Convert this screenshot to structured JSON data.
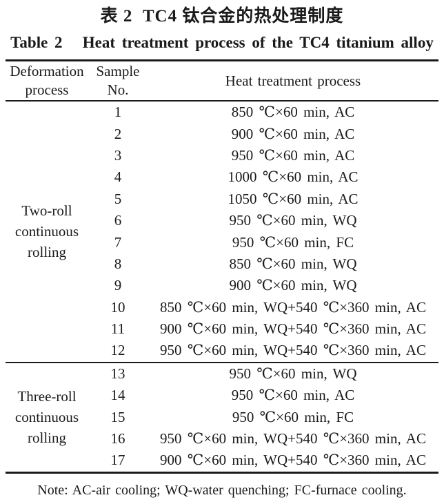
{
  "title": {
    "zh": "表 2  TC4 钛合金的热处理制度",
    "en": "Table 2   Heat treatment process of the TC4 titanium alloy"
  },
  "table": {
    "headers": {
      "deformation_process": "Deformation process",
      "sample_no": "Sample No.",
      "heat_treatment": "Heat treatment process"
    },
    "sections": [
      {
        "deformation_process": "Two-roll continuous rolling",
        "rows": [
          {
            "sample_no": "1",
            "heat_treatment": "850 ℃×60 min, AC"
          },
          {
            "sample_no": "2",
            "heat_treatment": "900 ℃×60 min, AC"
          },
          {
            "sample_no": "3",
            "heat_treatment": "950 ℃×60 min, AC"
          },
          {
            "sample_no": "4",
            "heat_treatment": "1000 ℃×60 min, AC"
          },
          {
            "sample_no": "5",
            "heat_treatment": "1050 ℃×60 min, AC"
          },
          {
            "sample_no": "6",
            "heat_treatment": "950 ℃×60 min, WQ"
          },
          {
            "sample_no": "7",
            "heat_treatment": "950 ℃×60 min, FC"
          },
          {
            "sample_no": "8",
            "heat_treatment": "850 ℃×60 min, WQ"
          },
          {
            "sample_no": "9",
            "heat_treatment": "900 ℃×60 min, WQ"
          },
          {
            "sample_no": "10",
            "heat_treatment": "850 ℃×60 min, WQ+540 ℃×360 min, AC"
          },
          {
            "sample_no": "11",
            "heat_treatment": "900 ℃×60 min, WQ+540 ℃×360 min, AC"
          },
          {
            "sample_no": "12",
            "heat_treatment": "950 ℃×60 min, WQ+540 ℃×360 min, AC"
          }
        ]
      },
      {
        "deformation_process": "Three-roll continuous rolling",
        "rows": [
          {
            "sample_no": "13",
            "heat_treatment": "950 ℃×60 min, WQ"
          },
          {
            "sample_no": "14",
            "heat_treatment": "950 ℃×60 min, AC"
          },
          {
            "sample_no": "15",
            "heat_treatment": "950 ℃×60 min, FC"
          },
          {
            "sample_no": "16",
            "heat_treatment": "950 ℃×60 min, WQ+540 ℃×360 min, AC"
          },
          {
            "sample_no": "17",
            "heat_treatment": "900 ℃×60 min, WQ+540 ℃×360 min, AC"
          }
        ]
      }
    ]
  },
  "note": "Note: AC-air cooling; WQ-water quenching; FC-furnace cooling.",
  "colors": {
    "background": "#ffffff",
    "text": "#1a1a1a",
    "rule": "#1a1a1a"
  }
}
